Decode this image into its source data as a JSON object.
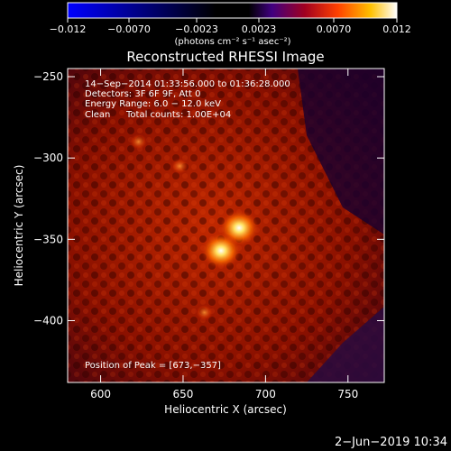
{
  "colorbar": {
    "ticks": [
      "−0.012",
      "−0.0070",
      "−0.0023",
      "0.0023",
      "0.0070",
      "0.012"
    ],
    "units_label": "(photons cm⁻² s⁻¹ asec⁻²)",
    "range": [
      -0.012,
      0.012
    ]
  },
  "chart_data": {
    "type": "heatmap",
    "title": "Reconstructed RHESSI Image",
    "xlabel": "Heliocentric X (arcsec)",
    "ylabel": "Heliocentric Y (arcsec)",
    "xlim": [
      580,
      772
    ],
    "ylim": [
      -438,
      -245
    ],
    "xticks": [
      600,
      650,
      700,
      750
    ],
    "yticks": [
      -250,
      -300,
      -350,
      -400
    ],
    "xtick_labels": [
      "600",
      "650",
      "700",
      "750"
    ],
    "ytick_labels": [
      "−250",
      "−300",
      "−350",
      "−400"
    ],
    "annotations": [
      "14−Sep−2014 01:33:56.000 to 01:36:28.000",
      "Detectors: 3F 6F 9F, Att 0",
      "Energy Range: 6.0 − 12.0 keV",
      "Clean",
      "Total counts: 1.00E+04"
    ],
    "peak_label": "Position of Peak = [673,−357]",
    "peak": [
      673,
      -357
    ],
    "sources": [
      {
        "x": 684,
        "y": -343,
        "value": 0.012
      },
      {
        "x": 673,
        "y": -357,
        "value": 0.012
      },
      {
        "x": 623,
        "y": -290,
        "value": 0.006
      },
      {
        "x": 648,
        "y": -305,
        "value": 0.004
      },
      {
        "x": 663,
        "y": -395,
        "value": 0.004
      }
    ]
  },
  "timestamp": "2−Jun−2019 10:34"
}
